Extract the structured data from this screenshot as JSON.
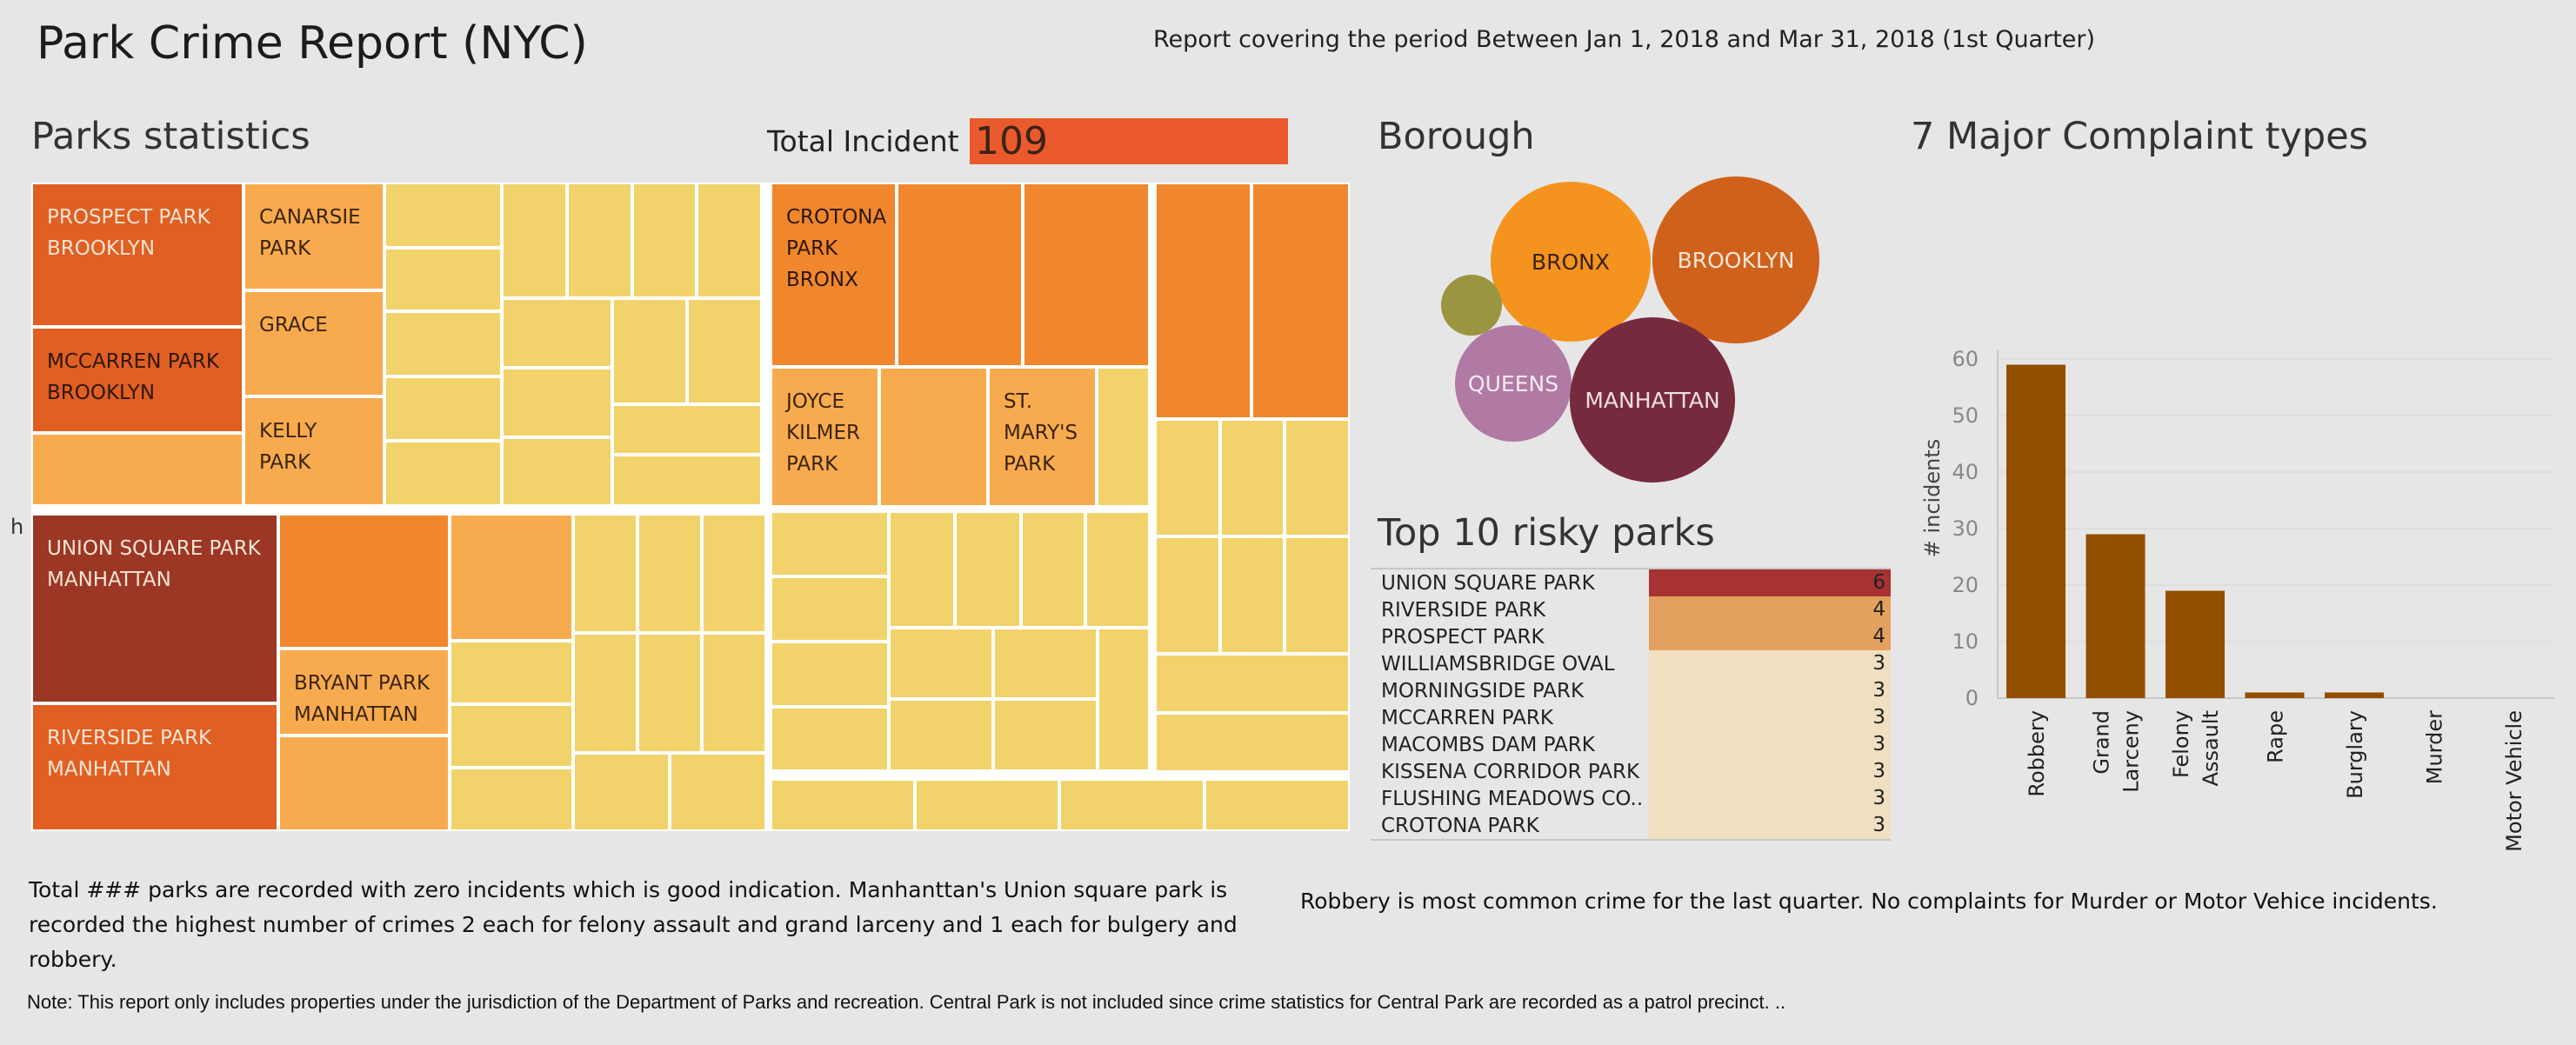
{
  "header": {
    "title": "Park Crime Report (NYC)",
    "period": "Report covering the period Between Jan 1, 2018 and Mar 31, 2018  (1st Quarter)"
  },
  "parks_stats": {
    "title": "Parks statistics",
    "total_label": "Total Incident",
    "total_value": "109",
    "axis_letter": "h"
  },
  "treemap": {
    "labels": {
      "prospect": "PROSPECT PARK\nBROOKLYN",
      "mccarren": "MCCARREN PARK\nBROOKLYN",
      "canarsie": "CANARSIE\nPARK",
      "grace": "GRACE",
      "kelly": "KELLY\nPARK",
      "crotona": "CROTONA\nPARK\nBRONX",
      "joyce": "JOYCE\nKILMER\nPARK",
      "stmarys": "ST.\nMARY'S\nPARK",
      "union": "UNION SQUARE PARK\nMANHATTAN",
      "riverside": "RIVERSIDE PARK\nMANHATTAN",
      "bryant": "BRYANT PARK\nMANHATTAN"
    }
  },
  "borough": {
    "title": "Borough",
    "bubbles": [
      {
        "name": "BRONX",
        "color": "#f5931f"
      },
      {
        "name": "BROOKLYN",
        "color": "#d0611b"
      },
      {
        "name": "QUEENS",
        "color": "#b07aa4"
      },
      {
        "name": "MANHATTAN",
        "color": "#762a3e"
      },
      {
        "name": "",
        "color": "#9b9440"
      }
    ]
  },
  "top10": {
    "title": "Top 10 risky parks",
    "rows": [
      {
        "name": "UNION SQUARE PARK",
        "value": "6",
        "color": "#a83232"
      },
      {
        "name": "RIVERSIDE PARK",
        "value": "4",
        "color": "#e4a05e"
      },
      {
        "name": "PROSPECT PARK",
        "value": "4",
        "color": "#e4a05e"
      },
      {
        "name": "WILLIAMSBRIDGE OVAL",
        "value": "3",
        "color": "#f0dfc0"
      },
      {
        "name": "MORNINGSIDE PARK",
        "value": "3",
        "color": "#f0dfc0"
      },
      {
        "name": "MCCARREN PARK",
        "value": "3",
        "color": "#f0dfc0"
      },
      {
        "name": "MACOMBS DAM PARK",
        "value": "3",
        "color": "#f0dfc0"
      },
      {
        "name": "KISSENA CORRIDOR PARK",
        "value": "3",
        "color": "#f0dfc0"
      },
      {
        "name": "FLUSHING MEADOWS CO..",
        "value": "3",
        "color": "#f0dfc0"
      },
      {
        "name": "CROTONA PARK",
        "value": "3",
        "color": "#f0dfc0"
      }
    ]
  },
  "chart_data": {
    "type": "bar",
    "title": "7 Major  Complaint types",
    "ylabel": "# incidents",
    "xlabel": "",
    "categories": [
      "Robbery",
      "Grand\nLarceny",
      "Felony\nAssault",
      "Rape",
      "Burglary",
      "Murder",
      "Motor Vehicle"
    ],
    "values": [
      59,
      29,
      19,
      1,
      1,
      0,
      0
    ],
    "ylim": [
      0,
      60
    ],
    "yticks": [
      0,
      10,
      20,
      30,
      40,
      50,
      60
    ],
    "bar_color": "#924f00",
    "grid": true
  },
  "notes": {
    "left": "Total ### parks are recorded with zero incidents which is good indication. Manhanttan's Union square park is recorded the highest number of crimes 2 each for felony assault and grand larceny and 1 each for bulgery and robbery.",
    "right": "Robbery is most common crime for the last quarter. No complaints for Murder or Motor Vehice incidents.",
    "footer": "Note: This report only includes properties under the jurisdiction of the Department of Parks and recreation. Central Park is not included since crime statistics for Central Park are recorded as a patrol precinct. .."
  },
  "colors": {
    "background": "#e6e6e6",
    "total_box": "#ea5a2d",
    "treemap_dark_red": "#9b3724",
    "treemap_dark_orange": "#e05f22",
    "treemap_orange": "#f0872d",
    "treemap_light_orange": "#f8ab4e",
    "treemap_yellow": "#f2d36b"
  }
}
